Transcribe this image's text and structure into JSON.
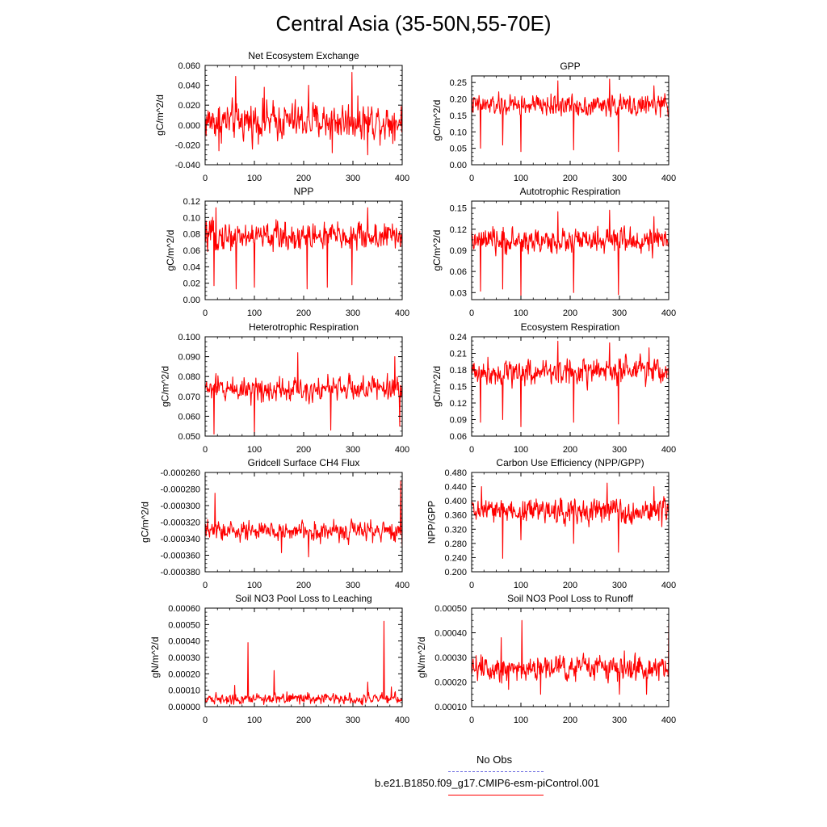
{
  "title": "Central Asia (35-50N,55-70E)",
  "legend": {
    "entries": [
      {
        "label": "No Obs",
        "color": "#6a6ae0",
        "style": "dashed"
      },
      {
        "label": "b.e21.B1850.f09_g17.CMIP6-esm-piControl.001",
        "color": "#ff0000",
        "style": "solid"
      }
    ]
  },
  "chart_data": [
    {
      "type": "line",
      "title": "Net Ecosystem Exchange",
      "ylabel": "gC/m^2/d",
      "xlim": [
        0,
        400
      ],
      "ylim": [
        -0.04,
        0.06
      ],
      "xticks": [
        "0",
        "100",
        "200",
        "300",
        "400"
      ],
      "yticks": [
        "-0.040",
        "-0.020",
        "0.000",
        "0.020",
        "0.040",
        "0.060"
      ],
      "series": [
        {
          "color": "#ff0000",
          "n": 400,
          "mean": 0.004,
          "noise": 0.012,
          "spikes": [
            [
              62,
              0.049
            ],
            [
              298,
              0.053
            ],
            [
              120,
              0.038
            ],
            [
              210,
              0.04
            ],
            [
              330,
              -0.03
            ],
            [
              258,
              -0.028
            ],
            [
              28,
              -0.026
            ]
          ]
        }
      ]
    },
    {
      "type": "line",
      "title": "GPP",
      "ylabel": "gC/m^2/d",
      "xlim": [
        0,
        400
      ],
      "ylim": [
        0,
        0.27
      ],
      "xticks": [
        "0",
        "100",
        "200",
        "300",
        "400"
      ],
      "yticks": [
        "0.00",
        "0.05",
        "0.10",
        "0.15",
        "0.20",
        "0.25"
      ],
      "series": [
        {
          "color": "#ff0000",
          "n": 400,
          "mean": 0.18,
          "noise": 0.02,
          "spikes": [
            [
              18,
              0.05
            ],
            [
              63,
              0.06
            ],
            [
              100,
              0.04
            ],
            [
              207,
              0.045
            ],
            [
              298,
              0.04
            ],
            [
              175,
              0.255
            ],
            [
              280,
              0.26
            ],
            [
              370,
              0.24
            ]
          ]
        }
      ]
    },
    {
      "type": "line",
      "title": "NPP",
      "ylabel": "gC/m^2/d",
      "xlim": [
        0,
        400
      ],
      "ylim": [
        0,
        0.12
      ],
      "xticks": [
        "0",
        "100",
        "200",
        "300",
        "400"
      ],
      "yticks": [
        "0.00",
        "0.02",
        "0.04",
        "0.06",
        "0.08",
        "0.10",
        "0.12"
      ],
      "series": [
        {
          "color": "#ff0000",
          "n": 400,
          "mean": 0.077,
          "noise": 0.011,
          "spikes": [
            [
              18,
              0.017
            ],
            [
              63,
              0.013
            ],
            [
              100,
              0.015
            ],
            [
              207,
              0.013
            ],
            [
              248,
              0.015
            ],
            [
              298,
              0.018
            ],
            [
              330,
              0.112
            ],
            [
              22,
              0.112
            ]
          ]
        }
      ]
    },
    {
      "type": "line",
      "title": "Autotrophic Respiration",
      "ylabel": "gC/m^2/d",
      "xlim": [
        0,
        400
      ],
      "ylim": [
        0.02,
        0.16
      ],
      "xticks": [
        "0",
        "100",
        "200",
        "300",
        "400"
      ],
      "yticks": [
        "0.03",
        "0.06",
        "0.09",
        "0.12",
        "0.15"
      ],
      "series": [
        {
          "color": "#ff0000",
          "n": 400,
          "mean": 0.103,
          "noise": 0.011,
          "spikes": [
            [
              18,
              0.032
            ],
            [
              63,
              0.035
            ],
            [
              100,
              0.026
            ],
            [
              207,
              0.03
            ],
            [
              298,
              0.027
            ],
            [
              175,
              0.145
            ],
            [
              280,
              0.147
            ],
            [
              370,
              0.138
            ]
          ]
        }
      ]
    },
    {
      "type": "line",
      "title": "Heterotrophic Respiration",
      "ylabel": "gC/m^2/d",
      "xlim": [
        0,
        400
      ],
      "ylim": [
        0.05,
        0.1
      ],
      "xticks": [
        "0",
        "100",
        "200",
        "300",
        "400"
      ],
      "yticks": [
        "0.050",
        "0.060",
        "0.070",
        "0.080",
        "0.090",
        "0.100"
      ],
      "series": [
        {
          "color": "#ff0000",
          "n": 400,
          "mean": 0.074,
          "noise": 0.004,
          "spikes": [
            [
              18,
              0.051
            ],
            [
              100,
              0.05
            ],
            [
              188,
              0.092
            ],
            [
              255,
              0.053
            ],
            [
              395,
              0.055
            ],
            [
              385,
              0.09
            ]
          ]
        }
      ]
    },
    {
      "type": "line",
      "title": "Ecosystem Respiration",
      "ylabel": "gC/m^2/d",
      "xlim": [
        0,
        400
      ],
      "ylim": [
        0.06,
        0.24
      ],
      "xticks": [
        "0",
        "100",
        "200",
        "300",
        "400"
      ],
      "yticks": [
        "0.06",
        "0.09",
        "0.12",
        "0.15",
        "0.18",
        "0.21",
        "0.24"
      ],
      "series": [
        {
          "color": "#ff0000",
          "n": 400,
          "mean": 0.177,
          "noise": 0.015,
          "spikes": [
            [
              18,
              0.085
            ],
            [
              63,
              0.09
            ],
            [
              100,
              0.077
            ],
            [
              207,
              0.085
            ],
            [
              298,
              0.082
            ],
            [
              175,
              0.232
            ],
            [
              280,
              0.229
            ],
            [
              360,
              0.22
            ]
          ]
        }
      ]
    },
    {
      "type": "line",
      "title": "Gridcell Surface CH4 Flux",
      "ylabel": "gC/m^2/d",
      "xlim": [
        0,
        400
      ],
      "ylim": [
        -0.00038,
        -0.00026
      ],
      "xticks": [
        "0",
        "100",
        "200",
        "300",
        "400"
      ],
      "yticks": [
        "-0.000380",
        "-0.000360",
        "-0.000340",
        "-0.000320",
        "-0.000300",
        "-0.000280",
        "-0.000260"
      ],
      "series": [
        {
          "color": "#ff0000",
          "n": 400,
          "mean": -0.000331,
          "noise": 7.5e-06,
          "spikes": [
            [
              20,
              -0.000285
            ],
            [
              397,
              -0.00027
            ],
            [
              400,
              -0.00035
            ],
            [
              210,
              -0.000362
            ],
            [
              155,
              -0.000357
            ]
          ]
        }
      ]
    },
    {
      "type": "line",
      "title": "Carbon Use Efficiency (NPP/GPP)",
      "ylabel": "NPP/GPP",
      "xlim": [
        0,
        400
      ],
      "ylim": [
        0.2,
        0.48
      ],
      "xticks": [
        "0",
        "100",
        "200",
        "300",
        "400"
      ],
      "yticks": [
        "0.200",
        "0.240",
        "0.280",
        "0.320",
        "0.360",
        "0.400",
        "0.440",
        "0.480"
      ],
      "series": [
        {
          "color": "#ff0000",
          "n": 400,
          "mean": 0.372,
          "noise": 0.022,
          "spikes": [
            [
              63,
              0.238
            ],
            [
              100,
              0.29
            ],
            [
              207,
              0.28
            ],
            [
              298,
              0.255
            ],
            [
              275,
              0.45
            ],
            [
              20,
              0.44
            ],
            [
              370,
              0.44
            ]
          ]
        }
      ]
    },
    {
      "type": "line",
      "title": "Soil NO3 Pool Loss to Leaching",
      "ylabel": "gN/m^2/d",
      "xlim": [
        0,
        400
      ],
      "ylim": [
        0,
        0.0006
      ],
      "xticks": [
        "0",
        "100",
        "200",
        "300",
        "400"
      ],
      "yticks": [
        "0.00000",
        "0.00010",
        "0.00020",
        "0.00030",
        "0.00040",
        "0.00050",
        "0.00060"
      ],
      "series": [
        {
          "color": "#ff0000",
          "n": 400,
          "mean": 5e-05,
          "noise": 2e-05,
          "floor": 1e-05,
          "spikes": [
            [
              87,
              0.00039
            ],
            [
              363,
              0.00052
            ],
            [
              140,
              0.00022
            ],
            [
              378,
              0.00012
            ],
            [
              60,
              0.00013
            ],
            [
              330,
              0.00015
            ]
          ]
        }
      ]
    },
    {
      "type": "line",
      "title": "Soil NO3 Pool Loss to Runoff",
      "ylabel": "gN/m^2/d",
      "xlim": [
        0,
        400
      ],
      "ylim": [
        0.0001,
        0.0005
      ],
      "xticks": [
        "0",
        "100",
        "200",
        "300",
        "400"
      ],
      "yticks": [
        "0.00010",
        "0.00020",
        "0.00030",
        "0.00040",
        "0.00050"
      ],
      "series": [
        {
          "color": "#ff0000",
          "n": 400,
          "mean": 0.00026,
          "noise": 3.5e-05,
          "spikes": [
            [
              102,
              0.00045
            ],
            [
              400,
              0.00044
            ],
            [
              75,
              0.00017
            ],
            [
              140,
              0.00015
            ],
            [
              300,
              0.00015
            ],
            [
              355,
              0.00015
            ],
            [
              60,
              0.00038
            ]
          ]
        }
      ]
    }
  ]
}
